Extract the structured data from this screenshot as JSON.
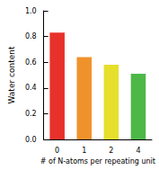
{
  "chart_data": {
    "type": "bar",
    "x_label": "# of N-atoms per repeating unit",
    "y_label": "Water content",
    "categories": [
      "0",
      "1",
      "2",
      "4"
    ],
    "values": [
      0.83,
      0.64,
      0.58,
      0.51
    ],
    "colors": [
      "#e8312a",
      "#f0922b",
      "#e6df2c",
      "#4db848"
    ],
    "ylim": [
      0,
      1.0
    ],
    "yticks": [
      {
        "value": 0,
        "label": "0.0"
      },
      {
        "value": 0.2,
        "label": "0.2"
      },
      {
        "value": 0.4,
        "label": "0.4"
      },
      {
        "value": 0.6,
        "label": "0.6"
      },
      {
        "value": 0.8,
        "label": "0.8"
      },
      {
        "value": 1.0,
        "label": "1.0"
      }
    ],
    "grid": false
  }
}
